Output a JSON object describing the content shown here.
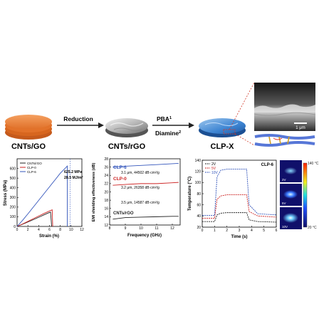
{
  "schematic": {
    "stage_labels": [
      "CNTs/GO",
      "CNTs/rGO",
      "CLP-X"
    ],
    "reduction_label": "Reduction",
    "pba_label": "PBA",
    "pba_sup": "1",
    "diamine_label": "Diamine",
    "diamine_sup": "2",
    "scalebar_label": "1 μm"
  },
  "chart_data": [
    {
      "type": "line",
      "title": "",
      "xlabel": "Strain (%)",
      "ylabel": "Stress (MPa)",
      "xlim": [
        0,
        12
      ],
      "ylim": [
        0,
        700
      ],
      "xticks": [
        0,
        2,
        4,
        6,
        8,
        10,
        12
      ],
      "yticks": [
        0,
        100,
        200,
        300,
        400,
        500,
        600
      ],
      "legend_position": "top-left",
      "series": [
        {
          "name": "CNTs/rGO",
          "color": "#222222",
          "points": [
            [
              0,
              0
            ],
            [
              1,
              22
            ],
            [
              2,
              46
            ],
            [
              3,
              70
            ],
            [
              4,
              95
            ],
            [
              5,
              120
            ],
            [
              5.9,
              142
            ],
            [
              6.2,
              148
            ],
            [
              6.4,
              0
            ]
          ]
        },
        {
          "name": "CLP-0",
          "color": "#cc2222",
          "points": [
            [
              0,
              0
            ],
            [
              1,
              25
            ],
            [
              2,
              52
            ],
            [
              3,
              80
            ],
            [
              4,
              108
            ],
            [
              5,
              135
            ],
            [
              6,
              160
            ],
            [
              6.5,
              172
            ],
            [
              6.6,
              0
            ]
          ]
        },
        {
          "name": "CLP-6",
          "color": "#3355bb",
          "points": [
            [
              0,
              0
            ],
            [
              1,
              62
            ],
            [
              2,
              130
            ],
            [
              3,
              200
            ],
            [
              4,
              270
            ],
            [
              5,
              340
            ],
            [
              6,
              410
            ],
            [
              7,
              480
            ],
            [
              8,
              550
            ],
            [
              9.3,
              625
            ],
            [
              9.3,
              0
            ]
          ]
        }
      ],
      "annotations": [
        "625.2 MPa",
        "28.5 MJ/m³"
      ]
    },
    {
      "type": "line",
      "title": "",
      "xlabel": "Frequency (GHz)",
      "ylabel": "EMI shielding effectiveness (dB)",
      "xlim": [
        8,
        12.5
      ],
      "ylim": [
        12,
        28
      ],
      "xticks": [
        8,
        9,
        10,
        11,
        12
      ],
      "yticks": [
        12,
        14,
        16,
        18,
        20,
        22,
        24,
        26,
        28
      ],
      "series": [
        {
          "name": "CLP-6",
          "color": "#3355bb",
          "points": [
            [
              8.2,
              26.0
            ],
            [
              9,
              26.2
            ],
            [
              10,
              26.4
            ],
            [
              11,
              26.6
            ],
            [
              12,
              26.8
            ],
            [
              12.4,
              26.9
            ]
          ]
        },
        {
          "name": "CLP-0",
          "color": "#cc2222",
          "points": [
            [
              8.2,
              21.6
            ],
            [
              9,
              21.8
            ],
            [
              10,
              22.0
            ],
            [
              11,
              22.0
            ],
            [
              12,
              22.2
            ],
            [
              12.4,
              22.3
            ]
          ]
        },
        {
          "name": "CNTs/rGO",
          "color": "#222222",
          "points": [
            [
              8.2,
              13.4
            ],
            [
              9,
              13.8
            ],
            [
              10,
              13.9
            ],
            [
              11,
              14.0
            ],
            [
              12,
              14.1
            ],
            [
              12.4,
              14.1
            ]
          ]
        }
      ],
      "annotations": [
        "3.1 μm, 44502 dB·cm²/g",
        "3.2 μm, 26358 dB·cm²/g",
        "3.5 μm, 14587 dB·cm²/g"
      ]
    },
    {
      "type": "line",
      "title": "CLP-6",
      "xlabel": "Time (s)",
      "ylabel": "Temperature (°C)",
      "xlim": [
        0,
        6
      ],
      "ylim": [
        20,
        140
      ],
      "xticks": [
        0,
        1,
        2,
        3,
        4,
        5,
        6
      ],
      "yticks": [
        20,
        40,
        60,
        80,
        100,
        120,
        140
      ],
      "legend_position": "top-left",
      "series": [
        {
          "name": "2V",
          "color": "#222222",
          "points": [
            [
              0,
              30
            ],
            [
              1,
              30
            ],
            [
              1.2,
              42
            ],
            [
              1.5,
              45
            ],
            [
              2,
              46
            ],
            [
              3,
              46
            ],
            [
              3.6,
              46
            ],
            [
              3.8,
              33
            ],
            [
              4.5,
              30
            ],
            [
              6,
              29
            ]
          ]
        },
        {
          "name": "5V",
          "color": "#cc2222",
          "points": [
            [
              0,
              36
            ],
            [
              1,
              36
            ],
            [
              1.2,
              70
            ],
            [
              1.5,
              76
            ],
            [
              2,
              78
            ],
            [
              3,
              78
            ],
            [
              3.6,
              78
            ],
            [
              3.8,
              48
            ],
            [
              4.5,
              40
            ],
            [
              6,
              38
            ]
          ]
        },
        {
          "name": "10V",
          "color": "#3355bb",
          "points": [
            [
              0,
              41
            ],
            [
              1,
              41
            ],
            [
              1.2,
              110
            ],
            [
              1.5,
              122
            ],
            [
              2,
              124
            ],
            [
              3,
              124
            ],
            [
              3.6,
              124
            ],
            [
              3.8,
              60
            ],
            [
              4.5,
              44
            ],
            [
              6,
              42
            ]
          ]
        }
      ]
    }
  ],
  "thermal": {
    "images": [
      "2V",
      "5V",
      "10V"
    ],
    "cbar_max": "140 °C",
    "cbar_min": "20 °C"
  }
}
